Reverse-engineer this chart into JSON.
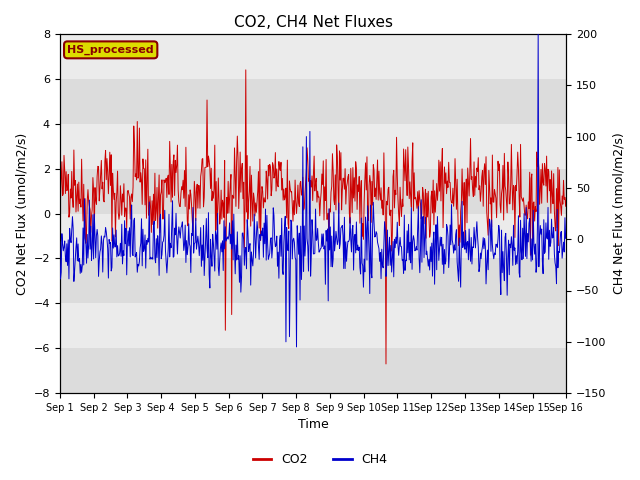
{
  "title": "CO2, CH4 Net Fluxes",
  "xlabel": "Time",
  "ylabel_left": "CO2 Net Flux (umol/m2/s)",
  "ylabel_right": "CH4 Net Flux (nmol/m2/s)",
  "ylim_left": [
    -8,
    8
  ],
  "ylim_right": [
    -150,
    200
  ],
  "yticks_left": [
    -8,
    -6,
    -4,
    -2,
    0,
    2,
    4,
    6,
    8
  ],
  "yticks_right": [
    -150,
    -100,
    -50,
    0,
    50,
    100,
    150,
    200
  ],
  "xtick_labels": [
    "Sep 1",
    "Sep 2",
    "Sep 3",
    "Sep 4",
    "Sep 5",
    "Sep 6",
    "Sep 7",
    "Sep 8",
    "Sep 9",
    "Sep 10",
    "Sep 11",
    "Sep 12",
    "Sep 13",
    "Sep 14",
    "Sep 15",
    "Sep 16"
  ],
  "co2_color": "#cc0000",
  "ch4_color": "#0000cc",
  "legend_label": "HS_processed",
  "legend_box_facecolor": "#dddd00",
  "legend_box_edgecolor": "#880000",
  "band_colors": [
    "#dcdcdc",
    "#ebebeb"
  ],
  "figure_color": "#ffffff",
  "title_fontsize": 11,
  "axis_label_fontsize": 9,
  "tick_fontsize": 8,
  "seed": 42,
  "n_days": 15,
  "points_per_day": 48
}
